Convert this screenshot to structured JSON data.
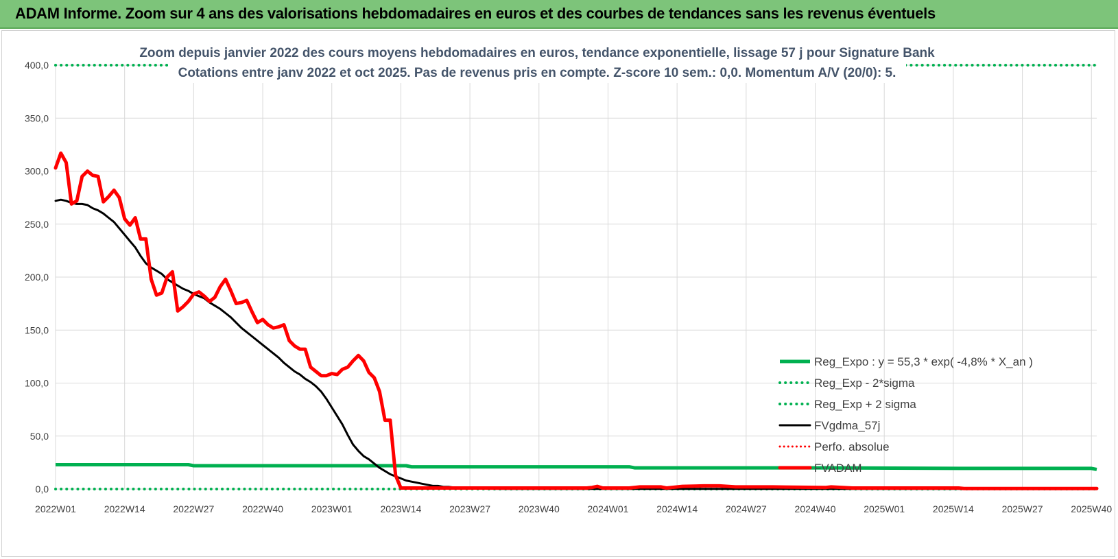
{
  "banner": {
    "title": "ADAM Informe. Zoom sur 4 ans des valorisations hebdomadaires en euros et des courbes de tendances sans les revenus éventuels"
  },
  "colors": {
    "banner": "#7dc47a",
    "reg_expo": "#00b050",
    "sigma": "#00b050",
    "fvgdma": "#000000",
    "perfo": "#ff0000",
    "fvadam": "#ff0000",
    "grid": "#d9d9d9"
  },
  "chart_data": {
    "type": "line",
    "title": "Zoom depuis janvier 2022 des cours moyens hebdomadaires en euros, tendance exponentielle, lissage 57 j pour Signature Bank",
    "subtitle": "Cotations entre janv 2022 et oct 2025. Pas de revenus pris en compte. Z-score 10 sem.: 0,0. Momentum A/V (20/0): 5.",
    "xlabel": "",
    "ylabel": "",
    "ylim": [
      0,
      400
    ],
    "yticks": [
      "0,0",
      "50,0",
      "100,0",
      "150,0",
      "200,0",
      "250,0",
      "300,0",
      "350,0",
      "400,0"
    ],
    "xlim": [
      0,
      196
    ],
    "xticks": [
      {
        "label": "2022W01",
        "x": 0
      },
      {
        "label": "2022W14",
        "x": 13
      },
      {
        "label": "2022W27",
        "x": 26
      },
      {
        "label": "2022W40",
        "x": 39
      },
      {
        "label": "2023W01",
        "x": 52
      },
      {
        "label": "2023W14",
        "x": 65
      },
      {
        "label": "2023W27",
        "x": 78
      },
      {
        "label": "2023W40",
        "x": 91
      },
      {
        "label": "2024W01",
        "x": 104
      },
      {
        "label": "2024W14",
        "x": 117
      },
      {
        "label": "2024W27",
        "x": 130
      },
      {
        "label": "2024W40",
        "x": 143
      },
      {
        "label": "2025W01",
        "x": 156
      },
      {
        "label": "2025W14",
        "x": 169
      },
      {
        "label": "2025W27",
        "x": 182
      },
      {
        "label": "2025W40",
        "x": 195
      }
    ],
    "grid": true,
    "legend_position": "bottom-right",
    "series": [
      {
        "name": "Reg_Expo : y = 55,3 * exp( -4,8% *  X_an )",
        "style": "solid-thick",
        "points": [
          [
            0,
            23
          ],
          [
            25,
            23
          ],
          [
            26,
            22
          ],
          [
            66,
            22
          ],
          [
            67,
            21
          ],
          [
            108,
            21
          ],
          [
            109,
            20
          ],
          [
            146,
            20
          ],
          [
            170,
            19.5
          ],
          [
            195,
            19.5
          ],
          [
            196,
            18.5
          ]
        ]
      },
      {
        "name": "Reg_Exp - 2*sigma",
        "style": "dotted",
        "points": [
          [
            0,
            0
          ],
          [
            196,
            0
          ]
        ]
      },
      {
        "name": "Reg_Exp + 2 sigma",
        "style": "dotted",
        "points": [
          [
            0,
            400
          ],
          [
            196,
            400
          ]
        ]
      },
      {
        "name": "FVgdma_57j",
        "style": "solid",
        "points": [
          [
            0,
            272
          ],
          [
            1,
            273
          ],
          [
            2,
            272
          ],
          [
            3,
            270
          ],
          [
            4,
            269
          ],
          [
            5,
            269
          ],
          [
            6,
            268
          ],
          [
            7,
            265
          ],
          [
            8,
            263
          ],
          [
            9,
            260
          ],
          [
            10,
            256
          ],
          [
            11,
            252
          ],
          [
            12,
            246
          ],
          [
            13,
            240
          ],
          [
            14,
            234
          ],
          [
            15,
            228
          ],
          [
            16,
            220
          ],
          [
            17,
            213
          ],
          [
            18,
            209
          ],
          [
            19,
            206
          ],
          [
            20,
            203
          ],
          [
            21,
            198
          ],
          [
            22,
            195
          ],
          [
            23,
            192
          ],
          [
            24,
            189
          ],
          [
            25,
            187
          ],
          [
            26,
            184
          ],
          [
            27,
            182
          ],
          [
            28,
            180
          ],
          [
            29,
            176
          ],
          [
            30,
            173
          ],
          [
            31,
            170
          ],
          [
            32,
            166
          ],
          [
            33,
            162
          ],
          [
            34,
            157
          ],
          [
            35,
            152
          ],
          [
            36,
            148
          ],
          [
            37,
            144
          ],
          [
            38,
            140
          ],
          [
            39,
            136
          ],
          [
            40,
            132
          ],
          [
            41,
            128
          ],
          [
            42,
            124
          ],
          [
            43,
            119
          ],
          [
            44,
            115
          ],
          [
            45,
            111
          ],
          [
            46,
            108
          ],
          [
            47,
            104
          ],
          [
            48,
            101
          ],
          [
            49,
            97
          ],
          [
            50,
            92
          ],
          [
            51,
            85
          ],
          [
            52,
            77
          ],
          [
            53,
            69
          ],
          [
            54,
            61
          ],
          [
            55,
            51
          ],
          [
            56,
            42
          ],
          [
            57,
            36
          ],
          [
            58,
            31
          ],
          [
            59,
            28
          ],
          [
            60,
            24
          ],
          [
            61,
            20
          ],
          [
            62,
            17
          ],
          [
            63,
            14
          ],
          [
            64,
            12
          ],
          [
            65,
            10
          ],
          [
            66,
            8
          ],
          [
            67,
            7
          ],
          [
            68,
            6
          ],
          [
            69,
            5
          ],
          [
            70,
            4
          ],
          [
            71,
            3
          ],
          [
            72,
            3
          ],
          [
            73,
            2
          ],
          [
            74,
            2
          ],
          [
            75,
            1.5
          ],
          [
            76,
            1
          ],
          [
            77,
            0.8
          ],
          [
            78,
            0.5
          ],
          [
            80,
            0.3
          ],
          [
            85,
            0.2
          ],
          [
            196,
            0.2
          ]
        ]
      },
      {
        "name": "Perfo. absolue",
        "style": "dotted",
        "points": []
      },
      {
        "name": "FVADAM",
        "style": "solid-thick",
        "points": [
          [
            0,
            303
          ],
          [
            1,
            317
          ],
          [
            2,
            308
          ],
          [
            3,
            269
          ],
          [
            4,
            272
          ],
          [
            5,
            295
          ],
          [
            6,
            300
          ],
          [
            7,
            296
          ],
          [
            8,
            295
          ],
          [
            9,
            271
          ],
          [
            10,
            276
          ],
          [
            11,
            282
          ],
          [
            12,
            275
          ],
          [
            13,
            255
          ],
          [
            14,
            249
          ],
          [
            15,
            256
          ],
          [
            16,
            236
          ],
          [
            17,
            236
          ],
          [
            18,
            198
          ],
          [
            19,
            183
          ],
          [
            20,
            185
          ],
          [
            21,
            200
          ],
          [
            22,
            205
          ],
          [
            23,
            168
          ],
          [
            24,
            172
          ],
          [
            25,
            177
          ],
          [
            26,
            184
          ],
          [
            27,
            186
          ],
          [
            28,
            182
          ],
          [
            29,
            177
          ],
          [
            30,
            181
          ],
          [
            31,
            191
          ],
          [
            32,
            198
          ],
          [
            33,
            187
          ],
          [
            34,
            175
          ],
          [
            35,
            176
          ],
          [
            36,
            178
          ],
          [
            37,
            167
          ],
          [
            38,
            157
          ],
          [
            39,
            160
          ],
          [
            40,
            155
          ],
          [
            41,
            152
          ],
          [
            42,
            153
          ],
          [
            43,
            155
          ],
          [
            44,
            140
          ],
          [
            45,
            135
          ],
          [
            46,
            132
          ],
          [
            47,
            132
          ],
          [
            48,
            115
          ],
          [
            49,
            111
          ],
          [
            50,
            107
          ],
          [
            51,
            107
          ],
          [
            52,
            109
          ],
          [
            53,
            108
          ],
          [
            54,
            113
          ],
          [
            55,
            115
          ],
          [
            56,
            121
          ],
          [
            57,
            126
          ],
          [
            58,
            121
          ],
          [
            59,
            110
          ],
          [
            60,
            105
          ],
          [
            61,
            92
          ],
          [
            62,
            65
          ],
          [
            63,
            65
          ],
          [
            64,
            13
          ],
          [
            65,
            1
          ],
          [
            66,
            1
          ],
          [
            100,
            1
          ],
          [
            101,
            1.5
          ],
          [
            102,
            2.5
          ],
          [
            103,
            1
          ],
          [
            108,
            1
          ],
          [
            110,
            2
          ],
          [
            114,
            2
          ],
          [
            115,
            1
          ],
          [
            118,
            2.5
          ],
          [
            122,
            3
          ],
          [
            125,
            3
          ],
          [
            128,
            2
          ],
          [
            135,
            2
          ],
          [
            145,
            1.5
          ],
          [
            146,
            2
          ],
          [
            150,
            1
          ],
          [
            170,
            1
          ],
          [
            171,
            0.5
          ],
          [
            196,
            0.5
          ]
        ]
      }
    ]
  }
}
